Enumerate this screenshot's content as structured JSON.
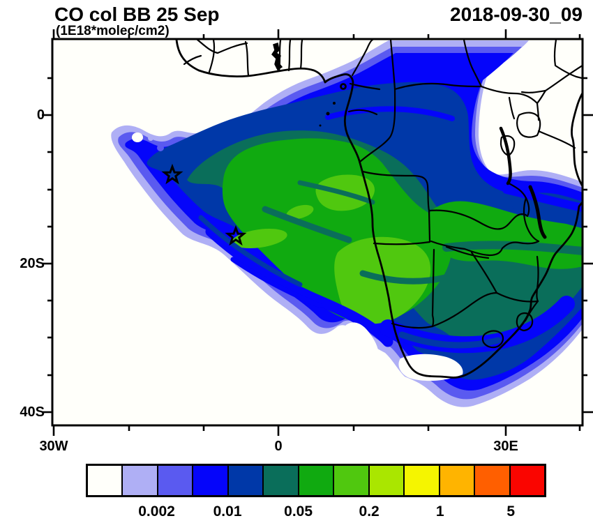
{
  "header": {
    "title": "CO col BB 25 Sep",
    "units_label": "(1E18*molec/cm2)",
    "timestamp": "2018-09-30_09"
  },
  "axes": {
    "y_ticks": [
      "0",
      "20S",
      "40S"
    ],
    "x_ticks": [
      "30W",
      "0",
      "30E"
    ]
  },
  "colorbar": {
    "labels": [
      "0.002",
      "0.01",
      "0.05",
      "0.2",
      "1",
      "5"
    ],
    "label_boundary_indices": [
      2,
      4,
      6,
      8,
      10,
      12
    ],
    "colors": [
      "#FFFFFA",
      "#AFAFF5",
      "#5A5AF0",
      "#0505FA",
      "#0038A8",
      "#0A6E5A",
      "#10AA10",
      "#50C80F",
      "#AAE600",
      "#F5F500",
      "#FFB400",
      "#FF5F00",
      "#FA0500"
    ]
  },
  "markers": [
    {
      "label": "star",
      "x": 247,
      "y": 251,
      "lon": "14W",
      "lat": "8S"
    },
    {
      "label": "star",
      "x": 338,
      "y": 339,
      "lon": "6W",
      "lat": "16S"
    }
  ],
  "chart_data": {
    "type": "heatmap",
    "subtype": "filled-contour-map",
    "title": "CO col BB 25 Sep",
    "units": "1E18*molec/cm2",
    "timestamp": "2018-09-30_09",
    "region": "Southern Africa and adjacent Atlantic / Indian Ocean",
    "lon_range": [
      "30W",
      "40E"
    ],
    "lat_range": [
      "10N",
      "42S"
    ],
    "x_tick_labels": [
      "30W",
      "0",
      "30E"
    ],
    "y_tick_labels": [
      "0",
      "20S",
      "40S"
    ],
    "contour_levels": [
      0.001,
      0.002,
      0.005,
      0.01,
      0.02,
      0.05,
      0.1,
      0.2,
      0.5,
      1,
      2,
      5
    ],
    "labeled_levels": [
      0.002,
      0.01,
      0.05,
      0.2,
      1,
      5
    ],
    "palette": [
      "#FFFFFA",
      "#AFAFF5",
      "#5A5AF0",
      "#0505FA",
      "#0038A8",
      "#0A6E5A",
      "#10AA10",
      "#50C80F",
      "#AAE600",
      "#F5F500",
      "#FFB400",
      "#FF5F00",
      "#FA0500"
    ],
    "description": "Biomass-burning CO column plume (max ~0.2-0.5) centered over Angola/Zambia/Namibia, fanning southwest over the Atlantic and east to Mozambique; low values over West Africa coast, East Africa and southern ocean.",
    "station_markers": [
      {
        "symbol": "star",
        "lon": "14W",
        "lat": "8S"
      },
      {
        "symbol": "star",
        "lon": "6W",
        "lat": "16S"
      }
    ]
  }
}
